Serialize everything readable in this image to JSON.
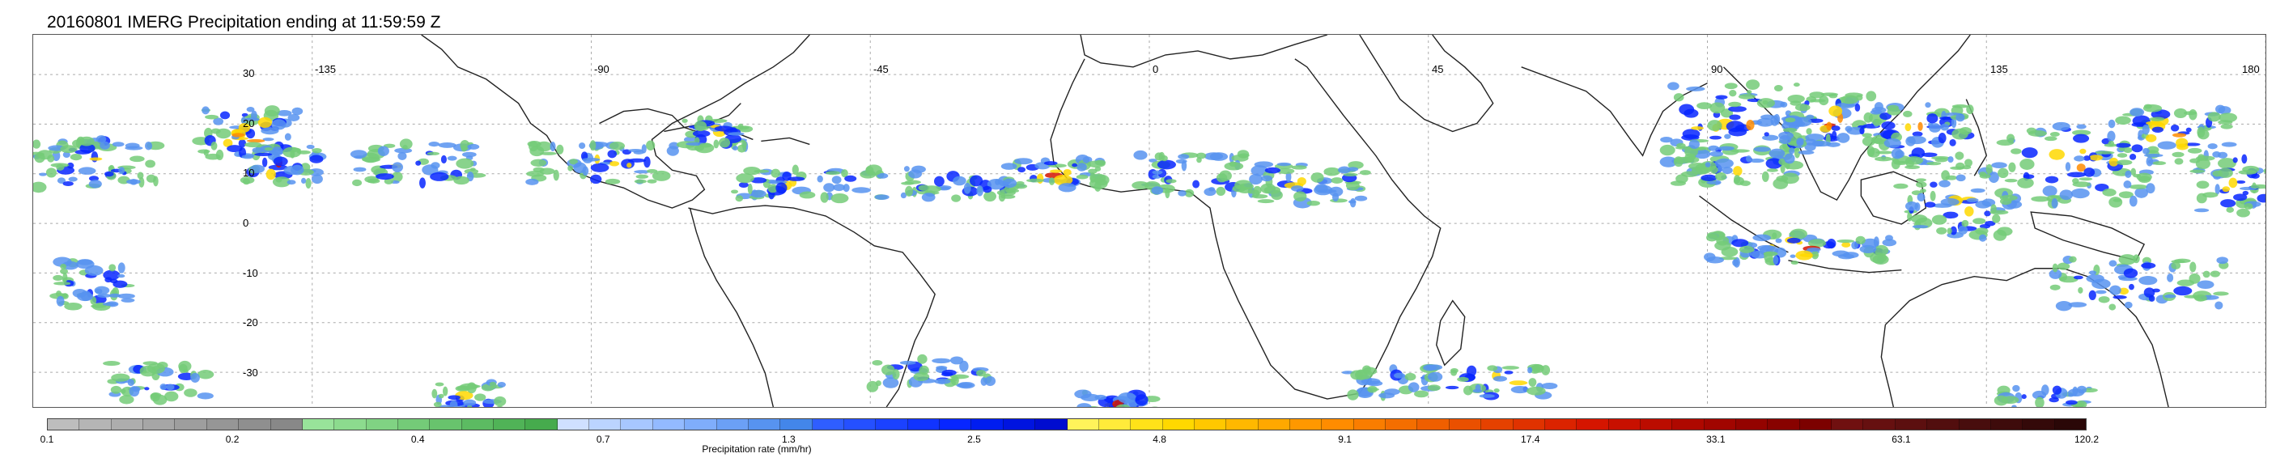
{
  "title": "20160801 IMERG Precipitation ending at 11:59:59 Z",
  "map": {
    "lon_range": [
      -180,
      180
    ],
    "lat_range": [
      -37,
      38
    ],
    "lat_labels": [
      "30",
      "20",
      "10",
      "0",
      "-10",
      "-20",
      "-30"
    ],
    "lat_values": [
      30,
      20,
      10,
      0,
      -10,
      -20,
      -30
    ],
    "lon_labels": [
      "-135",
      "-90",
      "-45",
      "0",
      "45",
      "90",
      "135",
      "180"
    ],
    "lon_values": [
      -135,
      -90,
      -45,
      0,
      45,
      90,
      135,
      180
    ],
    "gridlines": "dotted",
    "coastlines": "black outline"
  },
  "legend": {
    "title": "Precipitation rate (mm/hr)",
    "ticks": [
      "0.1",
      "0.2",
      "0.4",
      "0.7",
      "1.3",
      "2.5",
      "4.8",
      "9.1",
      "17.4",
      "33.1",
      "63.1",
      "120.2"
    ],
    "colors": [
      "#bdbdbd",
      "#b5b5b5",
      "#adadad",
      "#a6a6a6",
      "#9e9e9e",
      "#969696",
      "#8f8f8f",
      "#888888",
      "#98e39a",
      "#8cdb8e",
      "#80d383",
      "#74cb78",
      "#68c36d",
      "#5cbb62",
      "#50b357",
      "#46ab4d",
      "#cfe0ff",
      "#bbd4ff",
      "#a7c7ff",
      "#93baff",
      "#7fadfb",
      "#6ba0f6",
      "#5793f0",
      "#4386ea",
      "#2f5eff",
      "#2550ff",
      "#1b42ff",
      "#1134ff",
      "#0726ff",
      "#001df0",
      "#0014e0",
      "#000cd0",
      "#fff35a",
      "#ffeb3a",
      "#ffe219",
      "#ffd800",
      "#ffc800",
      "#ffb800",
      "#ffa800",
      "#ff9800",
      "#ff8c00",
      "#fa7d00",
      "#f46e00",
      "#ef5f00",
      "#ea5000",
      "#e54100",
      "#e03200",
      "#db2300",
      "#d51500",
      "#c81000",
      "#bb0c00",
      "#ae0800",
      "#a10500",
      "#940300",
      "#880200",
      "#7c0100",
      "#701010",
      "#661010",
      "#5c0f0f",
      "#520e0e",
      "#480d0d",
      "#3e0b0b",
      "#340909",
      "#2a0707"
    ]
  }
}
